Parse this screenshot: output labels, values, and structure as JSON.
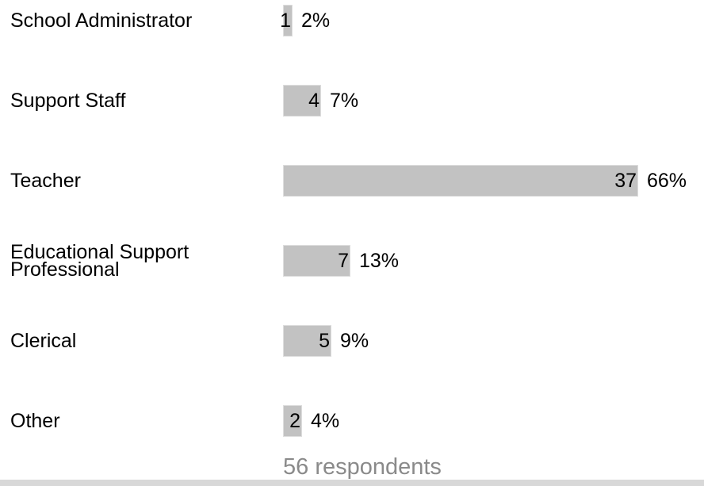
{
  "chart_data": {
    "type": "bar",
    "orientation": "horizontal",
    "categories": [
      [
        "School Administrator"
      ],
      [
        "Support Staff"
      ],
      [
        "Teacher"
      ],
      [
        "Educational Support",
        "Professional"
      ],
      [
        "Clerical"
      ],
      [
        "Other"
      ]
    ],
    "values": [
      1,
      4,
      37,
      7,
      5,
      2
    ],
    "percentages": [
      "2%",
      "7%",
      "66%",
      "13%",
      "9%",
      "4%"
    ],
    "bar_color": "#c2c2c2",
    "footer": "56 respondents"
  }
}
